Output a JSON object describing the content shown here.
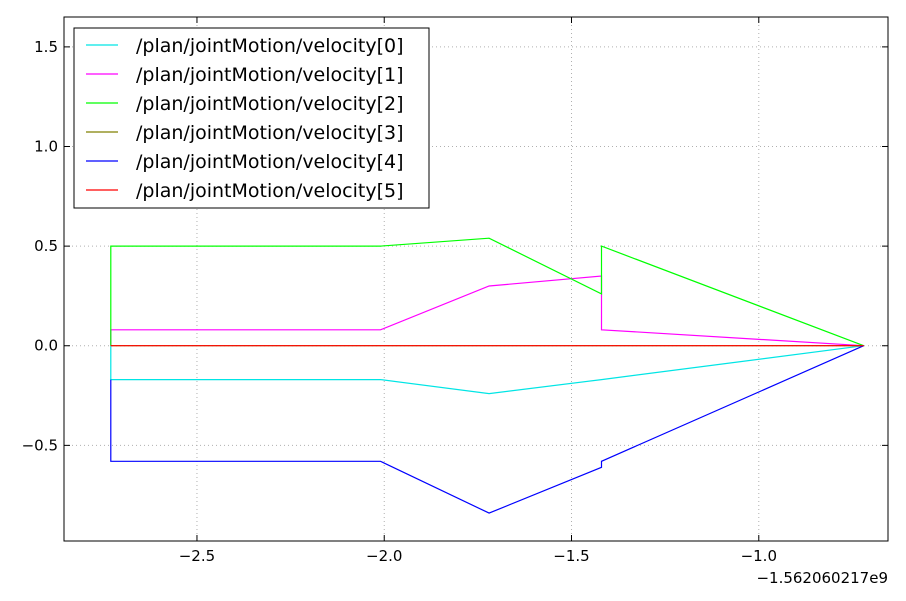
{
  "chart_data": {
    "type": "line",
    "title": "",
    "xlabel": "",
    "ylabel": "",
    "xlim": [
      -2.855,
      -0.655
    ],
    "ylim": [
      -0.98,
      1.65
    ],
    "x_offset_label": "−1.562060217e9",
    "xticks": [
      {
        "value": -2.5,
        "label": "−2.5"
      },
      {
        "value": -2.0,
        "label": "−2.0"
      },
      {
        "value": -1.5,
        "label": "−1.5"
      },
      {
        "value": -1.0,
        "label": "−1.0"
      }
    ],
    "yticks": [
      {
        "value": -0.5,
        "label": "−0.5"
      },
      {
        "value": 0.0,
        "label": "0.0"
      },
      {
        "value": 0.5,
        "label": "0.5"
      },
      {
        "value": 1.0,
        "label": "1.0"
      },
      {
        "value": 1.5,
        "label": "1.5"
      }
    ],
    "grid": true,
    "legend_position": "top-left",
    "series": [
      {
        "name": "/plan/jointMotion/velocity[0]",
        "color": "#00e5e5",
        "x": [
          -2.73,
          -2.73,
          -2.01,
          -1.72,
          -1.42,
          -0.72
        ],
        "y": [
          0.0,
          -0.17,
          -0.17,
          -0.24,
          -0.17,
          0.0
        ]
      },
      {
        "name": "/plan/jointMotion/velocity[1]",
        "color": "#ff00ff",
        "x": [
          -2.73,
          -2.73,
          -2.01,
          -1.72,
          -1.42,
          -1.42,
          -0.72
        ],
        "y": [
          0.0,
          0.08,
          0.08,
          0.3,
          0.35,
          0.08,
          0.0
        ]
      },
      {
        "name": "/plan/jointMotion/velocity[2]",
        "color": "#00ff00",
        "x": [
          -2.73,
          -2.73,
          -2.01,
          -1.72,
          -1.42,
          -1.42,
          -0.72
        ],
        "y": [
          0.0,
          0.5,
          0.5,
          0.54,
          0.26,
          0.5,
          0.0
        ]
      },
      {
        "name": "/plan/jointMotion/velocity[3]",
        "color": "#808000",
        "x": [
          -2.73,
          -0.72
        ],
        "y": [
          0.0,
          0.0
        ]
      },
      {
        "name": "/plan/jointMotion/velocity[4]",
        "color": "#0000ff",
        "x": [
          -2.73,
          -2.73,
          -2.01,
          -1.72,
          -1.42,
          -1.42,
          -0.72
        ],
        "y": [
          -0.17,
          -0.58,
          -0.58,
          -0.84,
          -0.61,
          -0.58,
          0.0
        ]
      },
      {
        "name": "/plan/jointMotion/velocity[5]",
        "color": "#ff0000",
        "x": [
          -2.73,
          -0.72
        ],
        "y": [
          0.0,
          0.0
        ]
      }
    ]
  }
}
